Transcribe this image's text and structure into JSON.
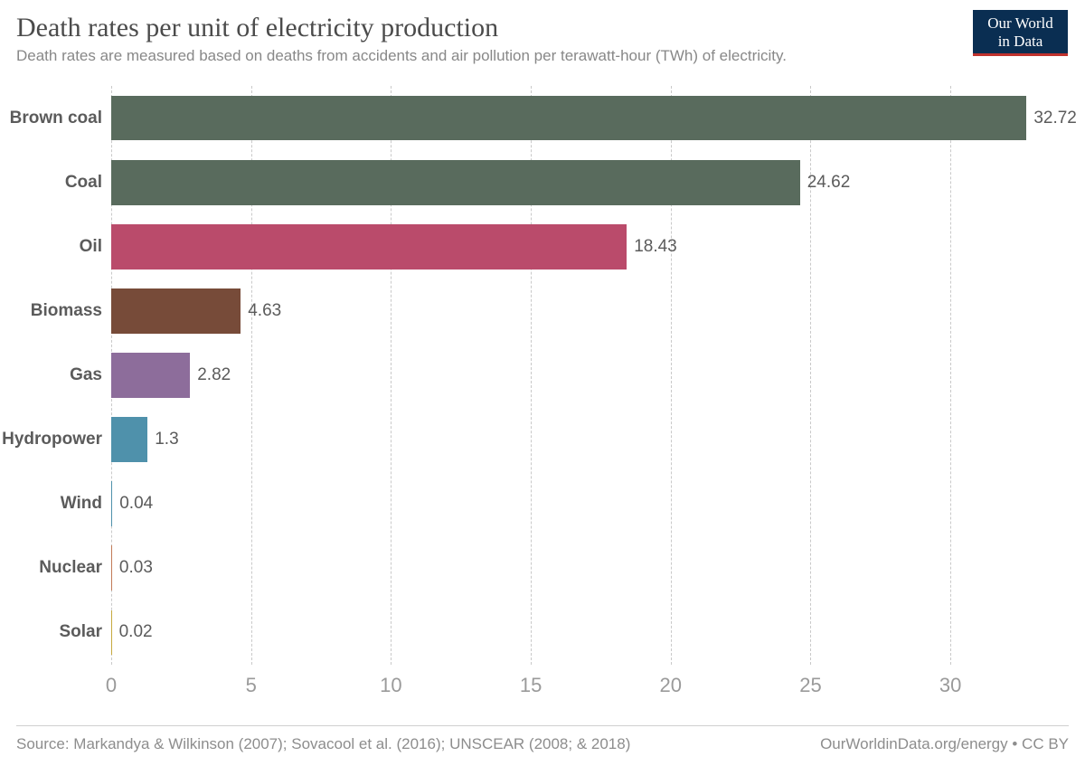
{
  "header": {
    "title": "Death rates per unit of electricity production",
    "subtitle": "Death rates are measured based on deaths from accidents and air pollution per terawatt-hour (TWh) of electricity."
  },
  "logo": {
    "line1": "Our World",
    "line2": "in Data",
    "bg_color": "#0a2e52",
    "accent_color": "#c0322e",
    "text_color": "#ffffff"
  },
  "chart": {
    "type": "bar-horizontal",
    "xlim": [
      0,
      33
    ],
    "xticks": [
      0,
      5,
      10,
      15,
      20,
      25,
      30
    ],
    "gridline_color": "#c9c9c9",
    "background_color": "#ffffff",
    "axis_label_color": "#9a9a9a",
    "axis_label_fontsize": 22,
    "value_label_fontsize": 19,
    "category_label_fontsize": 19,
    "category_label_fontweight": 700,
    "bar_gap_ratio": 0.3,
    "categories": [
      {
        "label": "Brown coal",
        "value": 32.72,
        "value_label": "32.72",
        "color": "#596b5d"
      },
      {
        "label": "Coal",
        "value": 24.62,
        "value_label": "24.62",
        "color": "#596b5d"
      },
      {
        "label": "Oil",
        "value": 18.43,
        "value_label": "18.43",
        "color": "#ba4b6b"
      },
      {
        "label": "Biomass",
        "value": 4.63,
        "value_label": "4.63",
        "color": "#774b39"
      },
      {
        "label": "Gas",
        "value": 2.82,
        "value_label": "2.82",
        "color": "#8d6d9b"
      },
      {
        "label": "Hydropower",
        "value": 1.3,
        "value_label": "1.3",
        "color": "#4f91ab"
      },
      {
        "label": "Wind",
        "value": 0.04,
        "value_label": "0.04",
        "color": "#4f91ab"
      },
      {
        "label": "Nuclear",
        "value": 0.03,
        "value_label": "0.03",
        "color": "#c27b58"
      },
      {
        "label": "Solar",
        "value": 0.02,
        "value_label": "0.02",
        "color": "#c6a93f"
      }
    ]
  },
  "footer": {
    "source": "Source: Markandya & Wilkinson (2007); Sovacool et al. (2016); UNSCEAR (2008; & 2018)",
    "credit": "OurWorldinData.org/energy • CC BY"
  }
}
